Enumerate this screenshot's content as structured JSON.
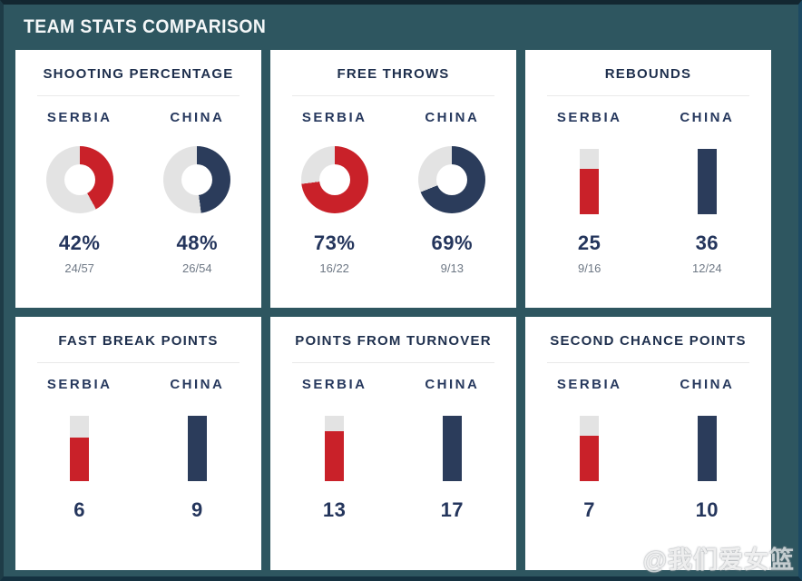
{
  "header": {
    "title": "TEAM STATS COMPARISON"
  },
  "colors": {
    "team_colors": [
      "#c92129",
      "#2b3c5b"
    ],
    "track": "#e3e3e3",
    "background_teal": "#2e5660",
    "panel_white": "#ffffff",
    "navy_text": "#24355c"
  },
  "watermark": {
    "handle": "@我们爱女篮",
    "logo": "weibo-logo"
  },
  "chart_data": [
    {
      "type": "donut",
      "title": "SHOOTING PERCENTAGE",
      "teams": [
        "SERBIA",
        "CHINA"
      ],
      "values": [
        42,
        48
      ],
      "value_labels": [
        "42%",
        "48%"
      ],
      "sub_labels": [
        "24/57",
        "26/54"
      ],
      "value_range": [
        0,
        100
      ]
    },
    {
      "type": "donut",
      "title": "FREE THROWS",
      "teams": [
        "SERBIA",
        "CHINA"
      ],
      "values": [
        73,
        69
      ],
      "value_labels": [
        "73%",
        "69%"
      ],
      "sub_labels": [
        "16/22",
        "9/13"
      ],
      "value_range": [
        0,
        100
      ]
    },
    {
      "type": "bar",
      "title": "REBOUNDS",
      "teams": [
        "SERBIA",
        "CHINA"
      ],
      "values": [
        25,
        36
      ],
      "value_labels": [
        "25",
        "36"
      ],
      "sub_labels": [
        "9/16",
        "12/24"
      ]
    },
    {
      "type": "bar",
      "title": "FAST BREAK POINTS",
      "teams": [
        "SERBIA",
        "CHINA"
      ],
      "values": [
        6,
        9
      ],
      "value_labels": [
        "6",
        "9"
      ]
    },
    {
      "type": "bar",
      "title": "POINTS FROM TURNOVER",
      "teams": [
        "SERBIA",
        "CHINA"
      ],
      "values": [
        13,
        17
      ],
      "value_labels": [
        "13",
        "17"
      ]
    },
    {
      "type": "bar",
      "title": "SECOND CHANCE POINTS",
      "teams": [
        "SERBIA",
        "CHINA"
      ],
      "values": [
        7,
        10
      ],
      "value_labels": [
        "7",
        "10"
      ]
    }
  ]
}
